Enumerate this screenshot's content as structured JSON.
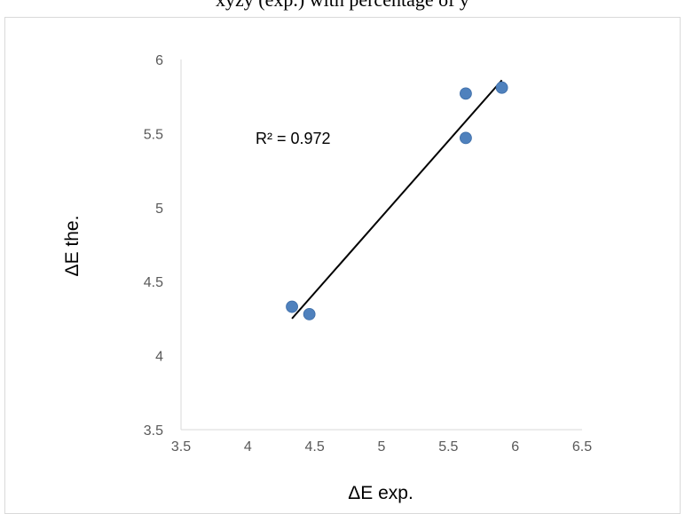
{
  "header_text": "xyzy (exp.) with percentage of y",
  "chart_data": {
    "type": "scatter",
    "title": "",
    "xlabel": "ΔE exp.",
    "ylabel": "ΔE the.",
    "xlim": [
      3.5,
      6.5
    ],
    "ylim": [
      3.5,
      6
    ],
    "x_ticks": [
      "3.5",
      "4",
      "4.5",
      "5",
      "5.5",
      "6",
      "6.5"
    ],
    "y_ticks": [
      "3.5",
      "4",
      "4.5",
      "5",
      "5.5",
      "6"
    ],
    "grid": false,
    "legend": "none",
    "series": [
      {
        "points": [
          {
            "x": 4.33,
            "y": 4.33
          },
          {
            "x": 4.46,
            "y": 4.28
          },
          {
            "x": 5.63,
            "y": 5.77
          },
          {
            "x": 5.63,
            "y": 5.47
          },
          {
            "x": 5.9,
            "y": 5.81
          }
        ],
        "color": "#4f81bd"
      }
    ],
    "trendline": {
      "type": "linear",
      "from": {
        "x": 4.33,
        "y": 4.25
      },
      "to": {
        "x": 5.9,
        "y": 5.86
      },
      "color": "#000000"
    },
    "annotation": "R² = 0.972"
  }
}
